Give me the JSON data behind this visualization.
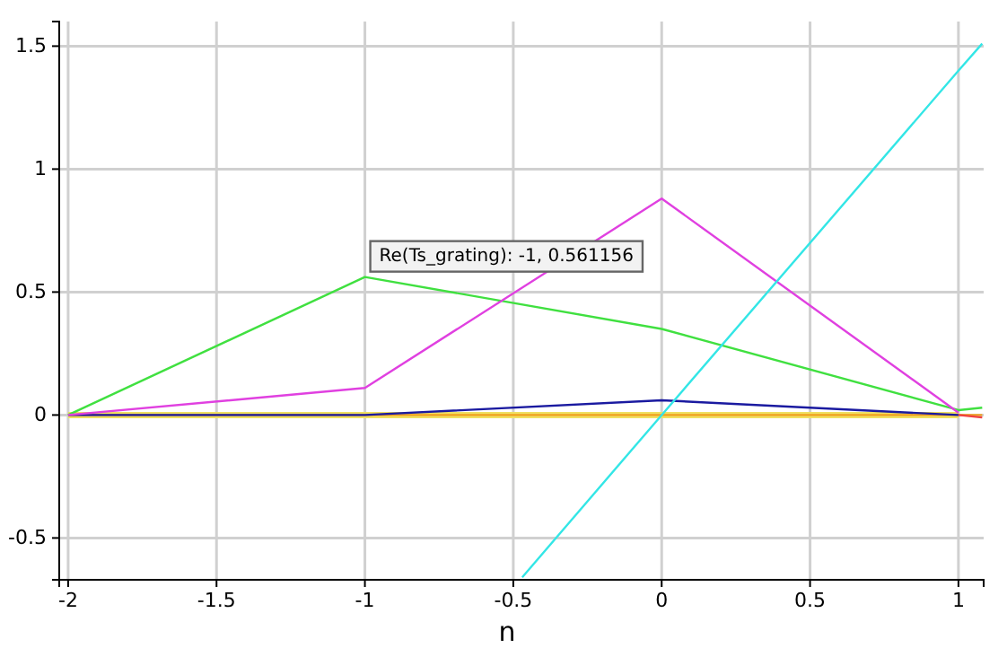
{
  "chart_data": {
    "type": "line",
    "xlabel": "n",
    "xlim": [
      -2.03,
      1.085
    ],
    "ylim": [
      -0.67,
      1.6
    ],
    "xticks": [
      -2,
      -1.5,
      -1,
      -0.5,
      0,
      0.5,
      1
    ],
    "yticks": [
      -0.5,
      0,
      0.5,
      1,
      1.5
    ],
    "grid": true,
    "marker": "none",
    "line_style": "solid",
    "series": [
      {
        "color": "#f0e060",
        "x": [
          -2,
          -1,
          0,
          1
        ],
        "values": [
          0,
          0,
          0,
          0
        ]
      },
      {
        "color": "#f0a020",
        "x": [
          -2,
          -1,
          0,
          1,
          1.08
        ],
        "values": [
          0,
          0,
          0,
          0,
          0
        ]
      },
      {
        "color": "#f04040",
        "x": [
          1,
          1.08
        ],
        "values": [
          0,
          -0.01
        ]
      },
      {
        "color": "#1a1aa0",
        "x": [
          -2,
          -1,
          0,
          1
        ],
        "values": [
          0,
          0,
          0.06,
          0
        ]
      },
      {
        "color": "#40e040",
        "x": [
          -2,
          -1,
          0,
          1,
          1.08
        ],
        "values": [
          0,
          0.561156,
          0.35,
          0.02,
          0.03
        ]
      },
      {
        "color": "#e040e0",
        "x": [
          -2,
          -1,
          0,
          1
        ],
        "values": [
          0,
          0.11,
          0.88,
          0.01
        ]
      },
      {
        "color": "#33e6e6",
        "x": [
          -0.47,
          0,
          1,
          1.08
        ],
        "values": [
          -0.66,
          0,
          1.4,
          1.51
        ]
      }
    ],
    "annotations": [
      {
        "text": "Re(Ts_grating): -1, 0.561156",
        "x": -1,
        "y": 0.561156
      }
    ]
  }
}
